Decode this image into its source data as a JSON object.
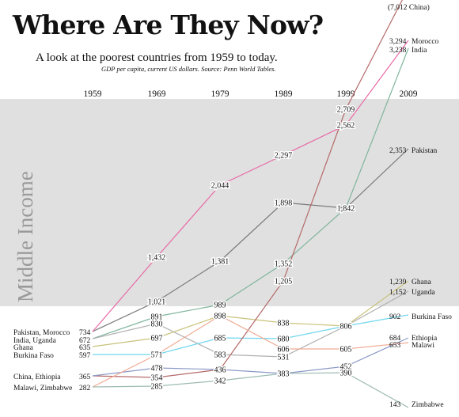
{
  "title": "Where Are They Now?",
  "subtitle": "A look at the poorest countries from 1959 to today.",
  "source_note": "GDP per capita, current US dollars. Source: Penn World Tables.",
  "band_label": "Middle Income",
  "colors": {
    "band": "#e0e0e0",
    "Pakistan": "#7b7b7b",
    "Morocco": "#e86aa6",
    "India": "#7fb59c",
    "Uganda": "#b0b0b0",
    "Ghana": "#c9c27a",
    "Burkina Faso": "#6fd6ee",
    "China": "#b56a6a",
    "Ethiopia": "#8c9ac7",
    "Malawi": "#f0ab95",
    "Zimbabwe": "#9dbbb0"
  },
  "chart_data": {
    "type": "line",
    "title": "Where Are They Now?",
    "subtitle": "A look at the poorest countries from 1959 to today.",
    "x": [
      1959,
      1969,
      1979,
      1989,
      1999,
      2009
    ],
    "x_labels": [
      "1959",
      "1969",
      "1979",
      "1989",
      "1999",
      "2009"
    ],
    "unit": "GDP per capita, current US dollars",
    "band": {
      "label": "Middle Income"
    },
    "series": [
      {
        "name": "Pakistan",
        "values": [
          734,
          1021,
          1381,
          1898,
          1842,
          2353
        ]
      },
      {
        "name": "Morocco",
        "values": [
          734,
          1432,
          2044,
          2297,
          2562,
          3294
        ]
      },
      {
        "name": "India",
        "values": [
          672,
          891,
          989,
          1352,
          1842,
          3238
        ]
      },
      {
        "name": "Uganda",
        "values": [
          672,
          830,
          583,
          531,
          806,
          1152
        ]
      },
      {
        "name": "Ghana",
        "values": [
          635,
          697,
          898,
          838,
          806,
          1239
        ]
      },
      {
        "name": "Burkina Faso",
        "values": [
          597,
          571,
          685,
          680,
          806,
          902
        ]
      },
      {
        "name": "China",
        "values": [
          365,
          354,
          436,
          1205,
          2709,
          7012
        ]
      },
      {
        "name": "Ethiopia",
        "values": [
          365,
          478,
          436,
          383,
          452,
          684
        ]
      },
      {
        "name": "Malawi",
        "values": [
          282,
          571,
          898,
          606,
          605,
          653
        ]
      },
      {
        "name": "Zimbabwe",
        "values": [
          282,
          285,
          342,
          383,
          390,
          143
        ]
      }
    ],
    "point_labels": {
      "1969": [
        "1,432",
        "1,021",
        "891",
        "830",
        "697",
        "571",
        "478",
        "354",
        "285"
      ],
      "1979": [
        "2,044",
        "1,381",
        "989",
        "898",
        "685",
        "583",
        "436",
        "342"
      ],
      "1989": [
        "2,297",
        "1,898",
        "1,352",
        "1,205",
        "838",
        "680",
        "606",
        "531",
        "383"
      ],
      "1999": [
        "2,709",
        "2,562",
        "1,842",
        "806",
        "605",
        "452",
        "390"
      ]
    },
    "start_labels": [
      {
        "text": "Pakistan, Morocco",
        "value": "734"
      },
      {
        "text": "India, Uganda",
        "value": "672"
      },
      {
        "text": "Ghana",
        "value": "635"
      },
      {
        "text": "Burkina Faso",
        "value": "597"
      },
      {
        "text": "China, Ethiopia",
        "value": "365"
      },
      {
        "text": "Malawi, Zimbabwe",
        "value": "282"
      }
    ],
    "end_labels": [
      {
        "text": "(7,012 China)"
      },
      {
        "value": "3,294",
        "text": "Morocco"
      },
      {
        "value": "3,238",
        "text": "India"
      },
      {
        "value": "2,353",
        "text": "Pakistan"
      },
      {
        "value": "1,239",
        "text": "Ghana"
      },
      {
        "value": "1,152",
        "text": "Uganda"
      },
      {
        "value": "902",
        "text": "Burkina Faso"
      },
      {
        "value": "684",
        "text": "Ethiopia"
      },
      {
        "value": "653",
        "text": "Malawi"
      },
      {
        "value": "143",
        "text": "Zimbabwe"
      }
    ]
  }
}
